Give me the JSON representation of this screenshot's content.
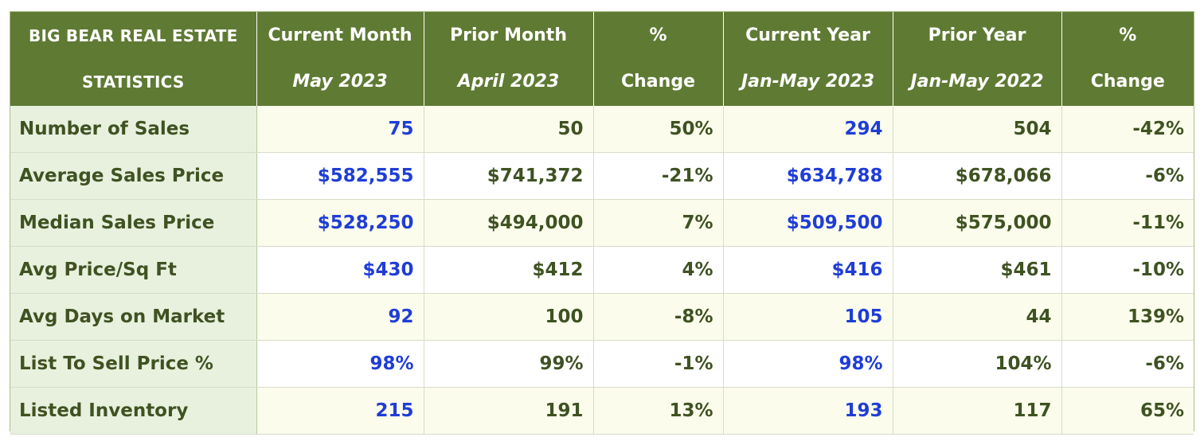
{
  "table": {
    "header": {
      "title_line1": "BIG BEAR REAL ESTATE",
      "title_line2": "STATISTICS",
      "columns": [
        {
          "line1": "Current Month",
          "line2": "May 2023",
          "italic": true
        },
        {
          "line1": "Prior Month",
          "line2": "April 2023",
          "italic": true
        },
        {
          "line1": "%",
          "line2": "Change",
          "italic": false
        },
        {
          "line1": "Current Year",
          "line2": "Jan-May 2023",
          "italic": true
        },
        {
          "line1": "Prior Year",
          "line2": "Jan-May 2022",
          "italic": true
        },
        {
          "line1": "%",
          "line2": "Change",
          "italic": false
        }
      ]
    },
    "rows": [
      {
        "metric": "Number of Sales",
        "values": [
          "75",
          "50",
          "50%",
          "294",
          "504",
          "-42%"
        ]
      },
      {
        "metric": "Average Sales Price",
        "values": [
          "$582,555",
          "$741,372",
          "-21%",
          "$634,788",
          "$678,066",
          "-6%"
        ]
      },
      {
        "metric": "Median Sales Price",
        "values": [
          "$528,250",
          "$494,000",
          "7%",
          "$509,500",
          "$575,000",
          "-11%"
        ]
      },
      {
        "metric": "Avg Price/Sq Ft",
        "values": [
          "$430",
          "$412",
          "4%",
          "$416",
          "$461",
          "-10%"
        ]
      },
      {
        "metric": "Avg Days on Market",
        "values": [
          "92",
          "100",
          "-8%",
          "105",
          "44",
          "139%"
        ]
      },
      {
        "metric": "List To Sell Price %",
        "values": [
          "98%",
          "99%",
          "-1%",
          "98%",
          "104%",
          "-6%"
        ]
      },
      {
        "metric": "Listed Inventory",
        "values": [
          "215",
          "191",
          "13%",
          "193",
          "117",
          "65%"
        ]
      }
    ]
  },
  "colors": {
    "header_bg": "#5f7a33",
    "header_text": "#ffffff",
    "metric_bg": "#e8f1de",
    "text_green": "#3f5222",
    "highlight_blue": "#1f3dd6"
  }
}
